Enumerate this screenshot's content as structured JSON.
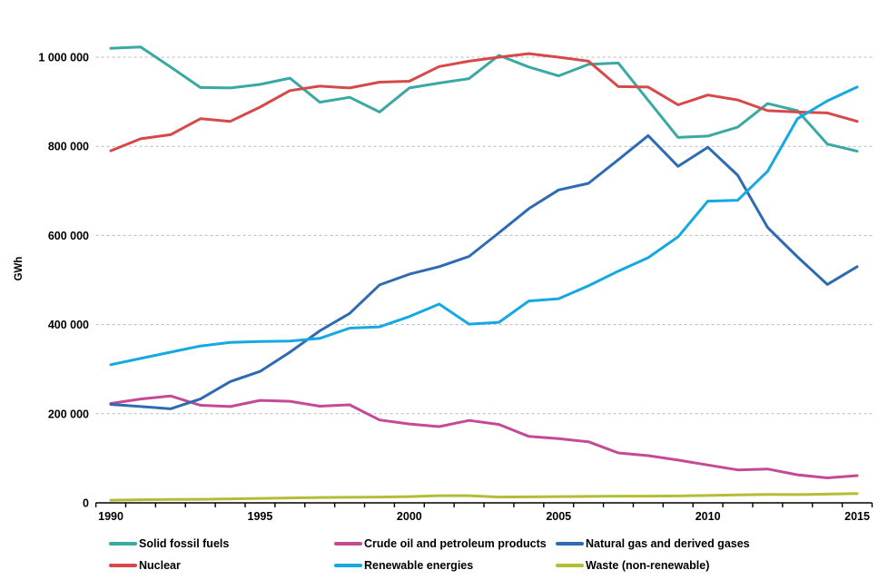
{
  "chart_data": {
    "type": "line",
    "title": "",
    "xlabel": "",
    "ylabel": "GWh",
    "unit": "GWh",
    "grid": "horizontal-dashed",
    "legend_position": "bottom-three-columns",
    "ylim": [
      0,
      1120000
    ],
    "x": [
      1990,
      1991,
      1992,
      1993,
      1994,
      1995,
      1996,
      1997,
      1998,
      1999,
      2000,
      2001,
      2002,
      2003,
      2004,
      2005,
      2006,
      2007,
      2008,
      2009,
      2010,
      2011,
      2012,
      2013,
      2014,
      2015
    ],
    "x_ticks": [
      1990,
      1995,
      2000,
      2005,
      2010,
      2015
    ],
    "x_tick_labels": [
      "1990",
      "1995",
      "2000",
      "2005",
      "2010",
      "2015"
    ],
    "y_ticks": [
      0,
      200000,
      400000,
      600000,
      800000,
      1000000
    ],
    "y_tick_labels": [
      "0",
      "200 000",
      "400 000",
      "600 000",
      "800 000",
      "1 000 000"
    ],
    "series": [
      {
        "name": "Solid fossil fuels",
        "color": "#3aa8a3",
        "legend_col": 0,
        "legend_row": 0,
        "values": [
          1020000,
          1023000,
          978000,
          932000,
          931000,
          939000,
          953000,
          899000,
          910000,
          877000,
          931000,
          942000,
          952000,
          1004000,
          978000,
          958000,
          984000,
          987000,
          903000,
          820000,
          823000,
          843000,
          896000,
          880000,
          805000,
          789000
        ]
      },
      {
        "name": "Nuclear",
        "color": "#d6494a",
        "legend_col": 0,
        "legend_row": 1,
        "values": [
          790000,
          817000,
          826000,
          862000,
          856000,
          888000,
          925000,
          935000,
          931000,
          944000,
          946000,
          979000,
          991000,
          1000000,
          1008000,
          1000000,
          991000,
          934000,
          933000,
          893000,
          915000,
          904000,
          880000,
          877000,
          875000,
          856000
        ]
      },
      {
        "name": "Crude oil and petroleum products",
        "color": "#c44a98",
        "legend_col": 1,
        "legend_row": 0,
        "values": [
          223000,
          233000,
          240000,
          219000,
          216000,
          230000,
          228000,
          217000,
          220000,
          186000,
          177000,
          171000,
          185000,
          176000,
          149000,
          144000,
          137000,
          112000,
          106000,
          96000,
          85000,
          74000,
          76000,
          63000,
          56000,
          61000
        ]
      },
      {
        "name": "Natural gas and derived gases",
        "color": "#2e6bb2",
        "legend_col": 2,
        "legend_row": 0,
        "values": [
          221000,
          216000,
          211000,
          233000,
          272000,
          295000,
          338000,
          386000,
          425000,
          489000,
          513000,
          530000,
          553000,
          606000,
          660000,
          702000,
          717000,
          770000,
          824000,
          755000,
          798000,
          735000,
          618000,
          552000,
          490000,
          530000
        ]
      },
      {
        "name": "Renewable energies",
        "color": "#15a8e1",
        "legend_col": 1,
        "legend_row": 1,
        "values": [
          310000,
          324000,
          338000,
          352000,
          360000,
          362000,
          363000,
          369000,
          392000,
          395000,
          418000,
          446000,
          401000,
          405000,
          453000,
          458000,
          487000,
          520000,
          550000,
          597000,
          677000,
          679000,
          744000,
          862000,
          902000,
          933000
        ]
      },
      {
        "name": "Waste (non-renewable)",
        "color": "#b4bd35",
        "legend_col": 2,
        "legend_row": 1,
        "values": [
          6000,
          7000,
          7500,
          8000,
          9000,
          10000,
          11000,
          12000,
          12500,
          13000,
          14000,
          16000,
          16000,
          13000,
          13500,
          14000,
          14500,
          15000,
          15000,
          15500,
          16500,
          18000,
          19000,
          18500,
          19500,
          21000
        ]
      }
    ]
  },
  "style": {
    "gridline_color": "#b9b9b9",
    "axis_color": "#000000",
    "background": "#ffffff"
  }
}
